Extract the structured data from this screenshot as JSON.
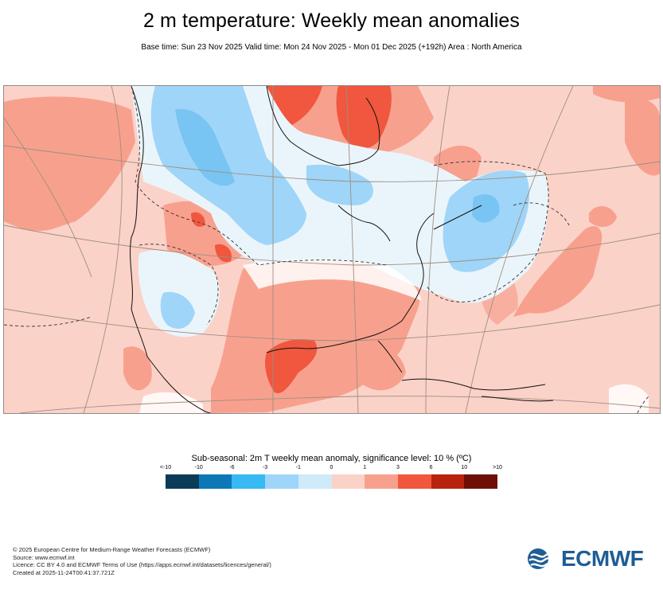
{
  "header": {
    "title": "2 m temperature: Weekly mean anomalies",
    "subtitle": "Base time: Sun 23 Nov 2025 Valid time: Mon 24 Nov 2025 - Mon 01 Dec 2025 (+192h) Area : North America"
  },
  "map": {
    "variable": "2m T weekly mean anomaly",
    "area": "North America",
    "regions": [
      {
        "name": "Western/Central Canada",
        "anomaly_class": "-3 to -1",
        "color": "#9fd5f8"
      },
      {
        "name": "Northern Plains / Great Lakes",
        "anomaly_class": "-1 to 0",
        "color": "#cfeaf9"
      },
      {
        "name": "Hudson Bay",
        "anomaly_class": "3 to 6",
        "color": "#f0573e"
      },
      {
        "name": "Southern US",
        "anomaly_class": "1 to 3",
        "color": "#f8a08e"
      },
      {
        "name": "South Texas",
        "anomaly_class": "3 to 6",
        "color": "#f0573e"
      },
      {
        "name": "Western North Atlantic",
        "anomaly_class": "-3 to -1",
        "color": "#9fd5f8"
      },
      {
        "name": "Background",
        "anomaly_class": "0 to 1",
        "color": "#fbd2c8"
      }
    ]
  },
  "legend": {
    "title": "Sub-seasonal: 2m T weekly mean anomaly, significance level: 10 % (ºC)",
    "tick_labels": [
      "<-10",
      "-10",
      "-6",
      "-3",
      "-1",
      "0",
      "1",
      "3",
      "6",
      "10",
      ">10"
    ],
    "colors": [
      "#0a3b58",
      "#0d78b6",
      "#37b9f3",
      "#9fd5f8",
      "#cfeaf9",
      "#fbd2c8",
      "#f8a08e",
      "#f0573e",
      "#b7230e",
      "#6e0f07"
    ]
  },
  "footer": {
    "lines": [
      "© 2025 European Centre for Medium-Range Weather Forecasts (ECMWF)",
      "Source: www.ecmwf.int",
      "Licence: CC BY 4.0 and ECMWF Terms of Use (https://apps.ecmwf.int/datasets/licences/general/)",
      "Created at 2025-11-24T00:41:37.721Z"
    ]
  },
  "logo": {
    "text": "ECMWF",
    "color": "#1f5d95"
  }
}
